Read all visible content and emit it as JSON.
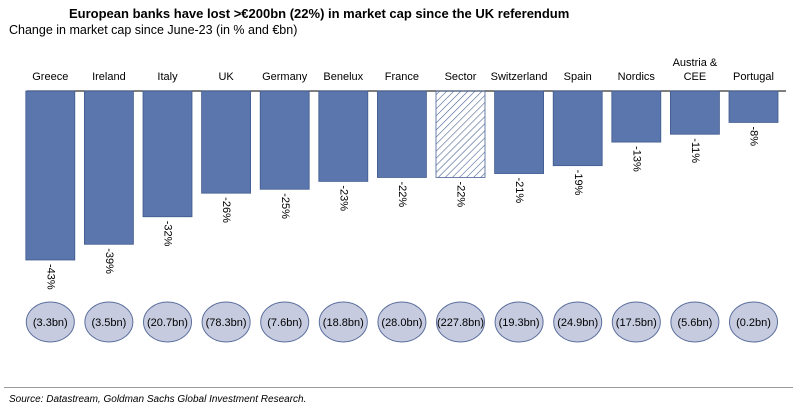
{
  "title": "European banks have lost >€200bn (22%) in market cap since the UK referendum",
  "subtitle": "Change in market cap since June-23 (in % and €bn)",
  "source": "Source: Datastream, Goldman Sachs Global Investment Research.",
  "colors": {
    "bar": "#5b76ad",
    "bar_stroke": "#3f5a8e",
    "bubble": "#c6cbe0",
    "bubble_stroke": "#5b6f9c",
    "hatch": "#4a6296"
  },
  "chart_data": {
    "type": "bar",
    "categories": [
      "Greece",
      "Ireland",
      "Italy",
      "UK",
      "Germany",
      "Benelux",
      "France",
      "Sector",
      "Switzerland",
      "Spain",
      "Nordics",
      "Austria & CEE",
      "Portugal"
    ],
    "category_lines": [
      [
        "Greece"
      ],
      [
        "Ireland"
      ],
      [
        "Italy"
      ],
      [
        "UK"
      ],
      [
        "Germany"
      ],
      [
        "Benelux"
      ],
      [
        "France"
      ],
      [
        "Sector"
      ],
      [
        "Switzerland"
      ],
      [
        "Spain"
      ],
      [
        "Nordics"
      ],
      [
        "Austria &",
        "CEE"
      ],
      [
        "Portugal"
      ]
    ],
    "values": [
      -43,
      -39,
      -32,
      -26,
      -25,
      -23,
      -22,
      -22,
      -21,
      -19,
      -13,
      -11,
      -8
    ],
    "value_labels": [
      "-43%",
      "-39%",
      "-32%",
      "-26%",
      "-25%",
      "-23%",
      "-22%",
      "-22%",
      "-21%",
      "-19%",
      "-13%",
      "-11%",
      "-8%"
    ],
    "market_cap_loss_labels": [
      "(3.3bn)",
      "(3.5bn)",
      "(20.7bn)",
      "(78.3bn)",
      "(7.6bn)",
      "(18.8bn)",
      "(28.0bn)",
      "(227.8bn)",
      "(19.3bn)",
      "(24.9bn)",
      "(17.5bn)",
      "(5.6bn)",
      "(0.2bn)"
    ],
    "highlighted_category": "Sector",
    "ylim": [
      -45,
      0
    ],
    "grid": false,
    "legend": "none"
  }
}
